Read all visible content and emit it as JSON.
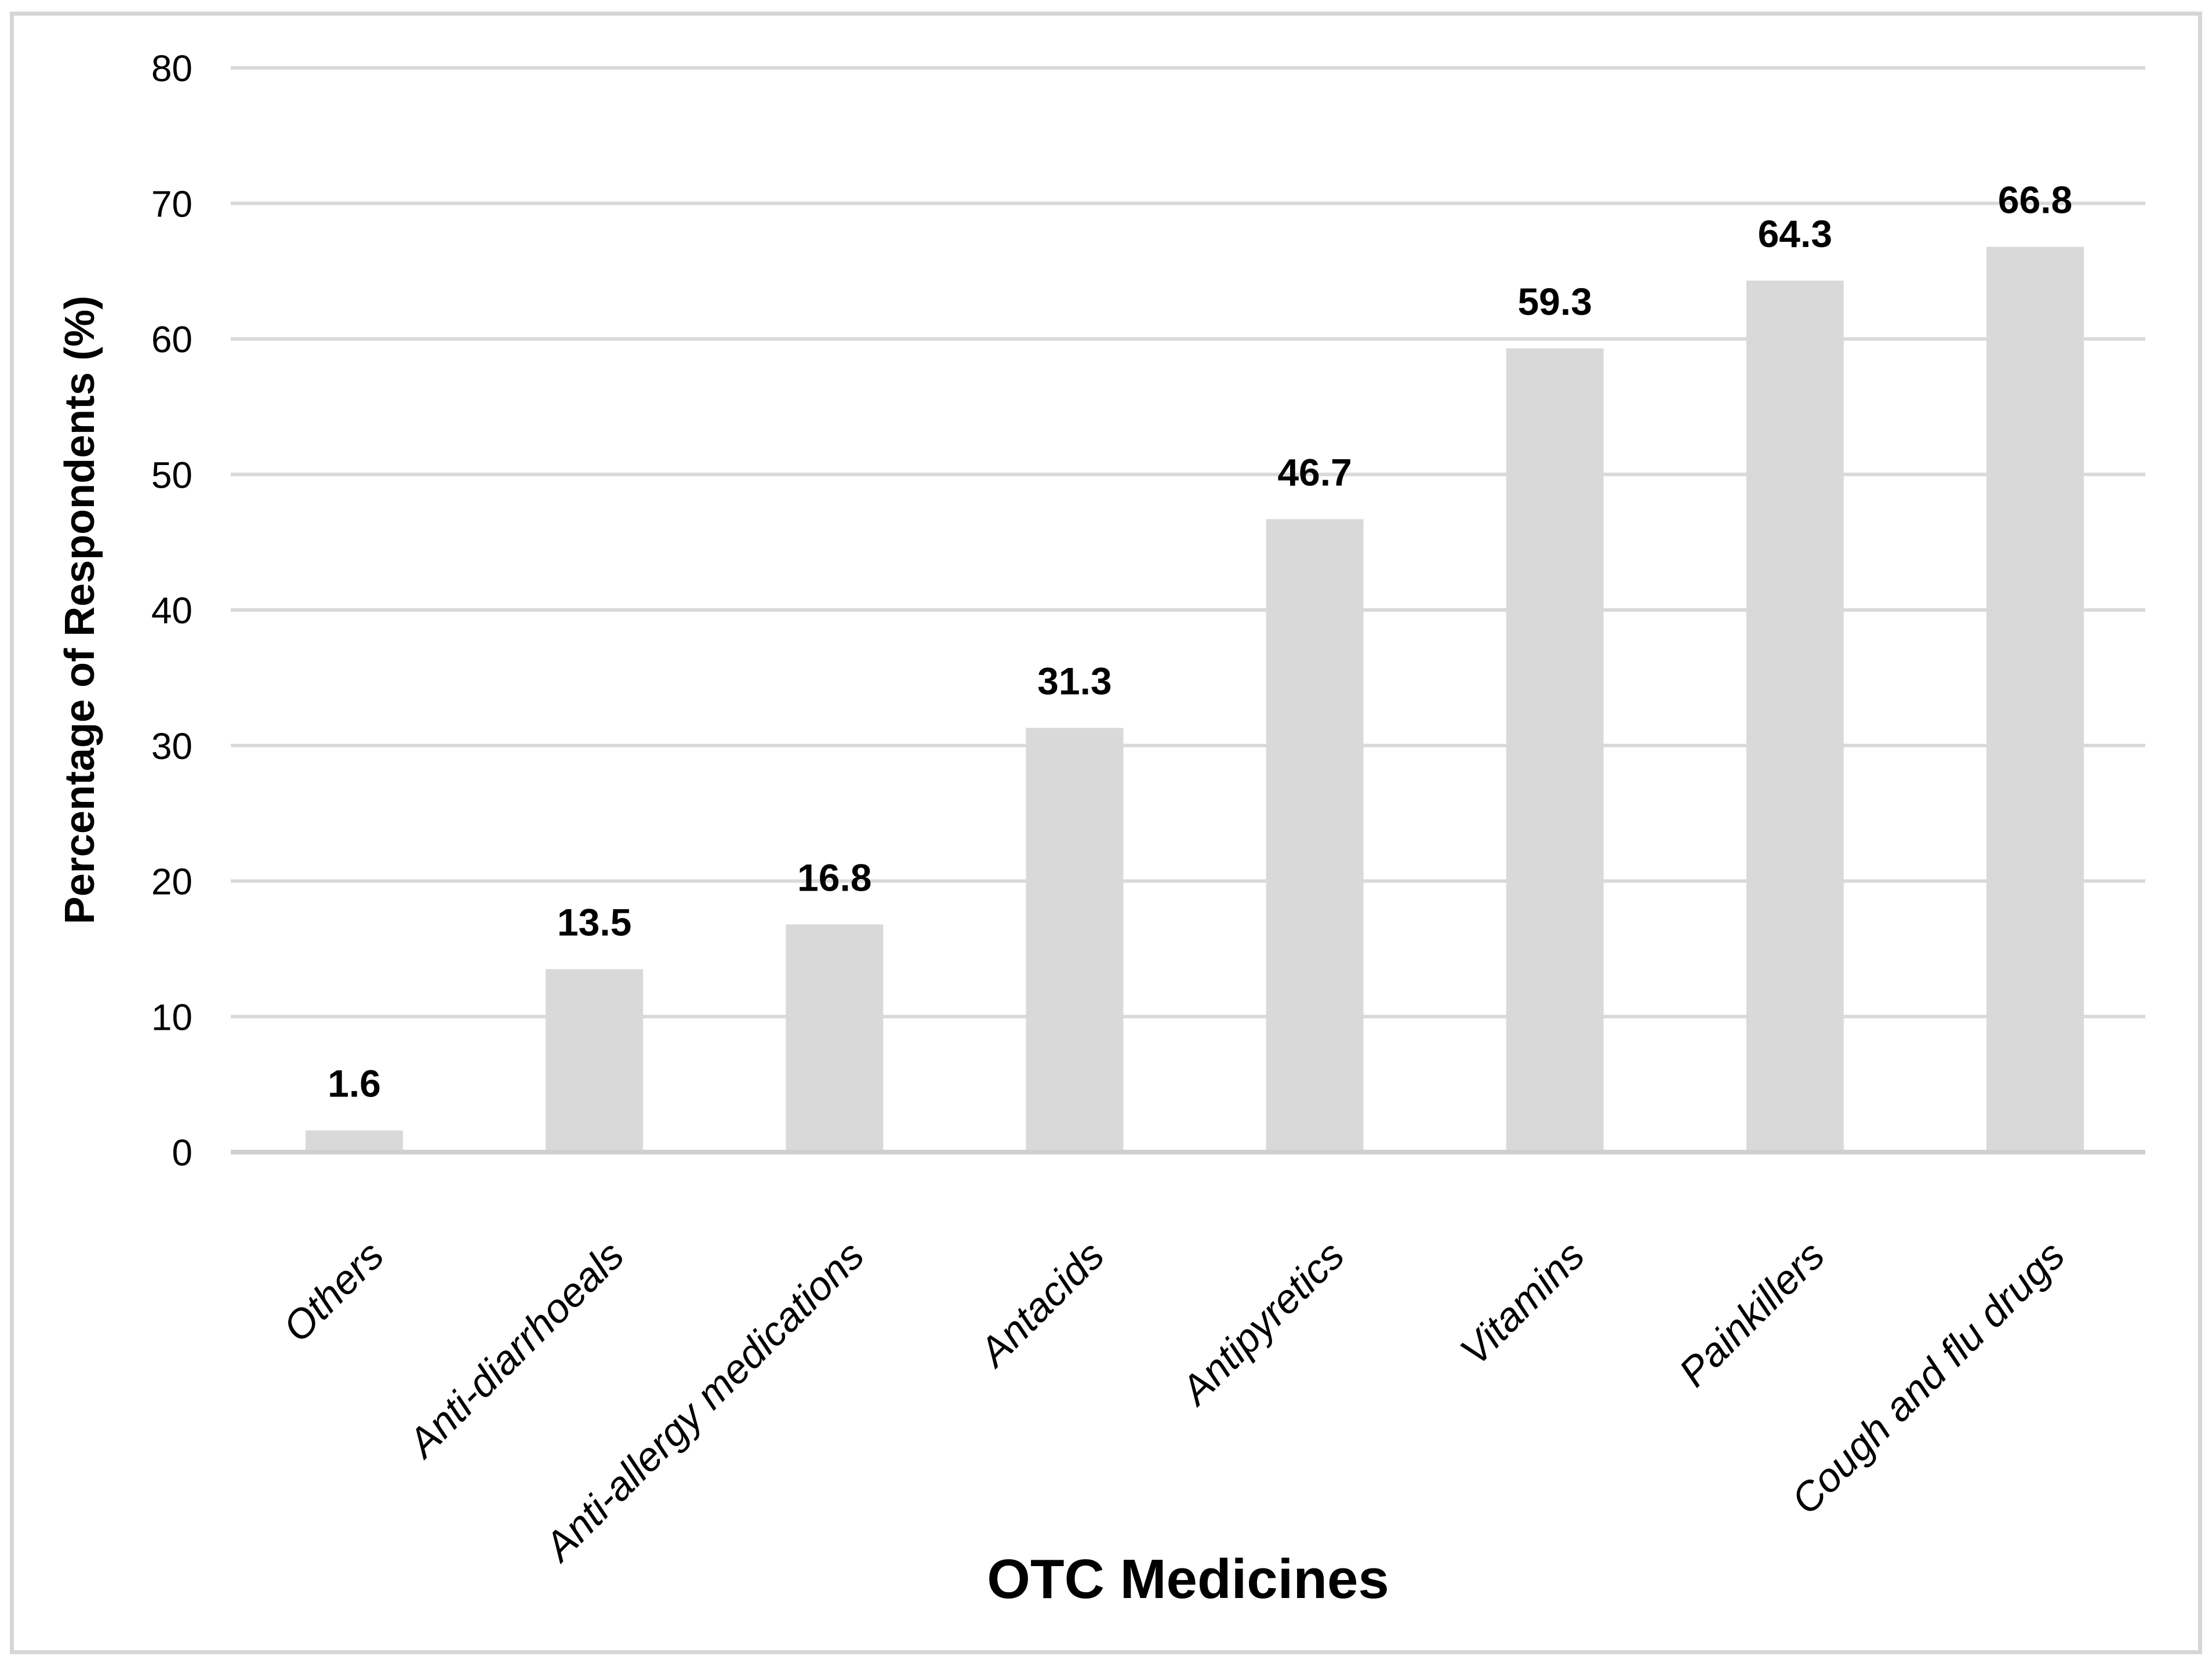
{
  "page": {
    "background": "#ffffff"
  },
  "figure": {
    "border_color": "#d6d6d6",
    "plot_background": "#ffffff"
  },
  "chart_data": {
    "type": "bar",
    "title": "",
    "categories": [
      "Others",
      "Anti-diarrhoeals",
      "Anti-allergy medications",
      "Antacids",
      "Antipyretics",
      "Vitamins",
      "Painkillers",
      "Cough and flu drugs"
    ],
    "values": [
      1.6,
      13.5,
      16.8,
      31.3,
      46.7,
      59.3,
      64.3,
      66.8
    ],
    "data_labels": [
      "1.6",
      "13.5",
      "16.8",
      "31.3",
      "46.7",
      "59.3",
      "64.3",
      "66.8"
    ],
    "xlabel": "OTC Medicines",
    "ylabel": "Percentage of Respondents (%)",
    "ylim": [
      0,
      80
    ],
    "yticks": [
      0,
      10,
      20,
      30,
      40,
      50,
      60,
      70,
      80
    ],
    "grid": true,
    "legend": "none",
    "bar_color": "#d9d9d9",
    "gridline_color": "#d9d9d9",
    "axis_line_color": "#cfcfcf",
    "label_color": "#000000"
  }
}
